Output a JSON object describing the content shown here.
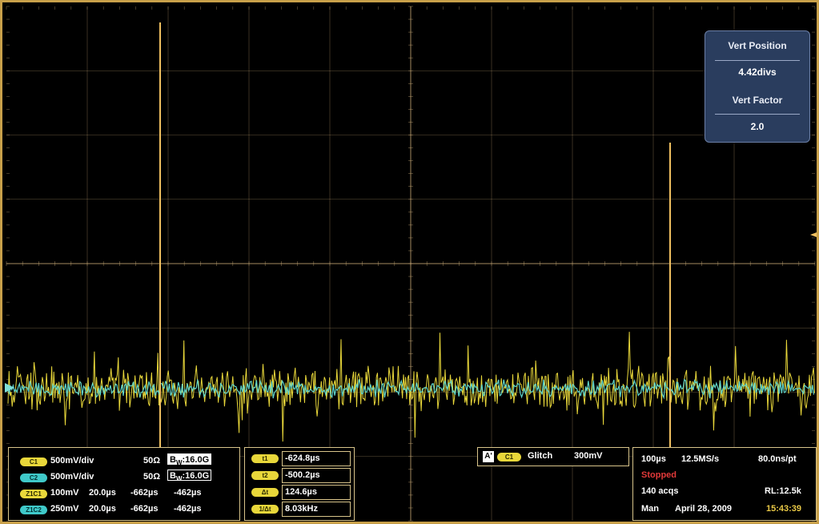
{
  "vert_panel": {
    "position_label": "Vert Position",
    "position_value": "4.42divs",
    "factor_label": "Vert Factor",
    "factor_value": "2.0"
  },
  "channels": {
    "c1": {
      "badge": "C1",
      "scale": "500mV/div",
      "impedance": "50Ω",
      "bw_prefix": "B",
      "bw_sub": "W",
      "bw_value": ":16.0G"
    },
    "c2": {
      "badge": "C2",
      "scale": "500mV/div",
      "impedance": "50Ω",
      "bw_prefix": "B",
      "bw_sub": "W",
      "bw_value": ":16.0G"
    },
    "z1c1": {
      "badge": "Z1C1",
      "scale": "100mV",
      "time": "20.0µs",
      "start": "-662µs",
      "end": "-462µs"
    },
    "z1c2": {
      "badge": "Z1C2",
      "scale": "250mV",
      "time": "20.0µs",
      "start": "-662µs",
      "end": "-462µs"
    }
  },
  "cursors": [
    {
      "badge": "t1",
      "value": "-624.8µs"
    },
    {
      "badge": "t2",
      "value": "-500.2µs"
    },
    {
      "badge": "Δt",
      "value": "124.6µs"
    },
    {
      "badge": "1/Δt",
      "value": "8.03kHz"
    }
  ],
  "trigger": {
    "a_badge": "A'",
    "channel_badge": "C1",
    "type": "Glitch",
    "level": "300mV"
  },
  "acquisition": {
    "timebase": "100µs",
    "sample_rate": "12.5MS/s",
    "resolution": "80.0ns/pt",
    "status": "Stopped",
    "acqs": "140 acqs",
    "record_length": "RL:12.5k",
    "mode": "Man",
    "date": "April 28, 2009",
    "time": "15:43:39"
  },
  "colors": {
    "trace_ch1": "#e8d73a",
    "trace_ch2": "#5fd3c8",
    "cursor": "#f0c060",
    "grid": "#d9b880",
    "status_red": "#e23a3a",
    "clock_yellow": "#e8c846"
  }
}
